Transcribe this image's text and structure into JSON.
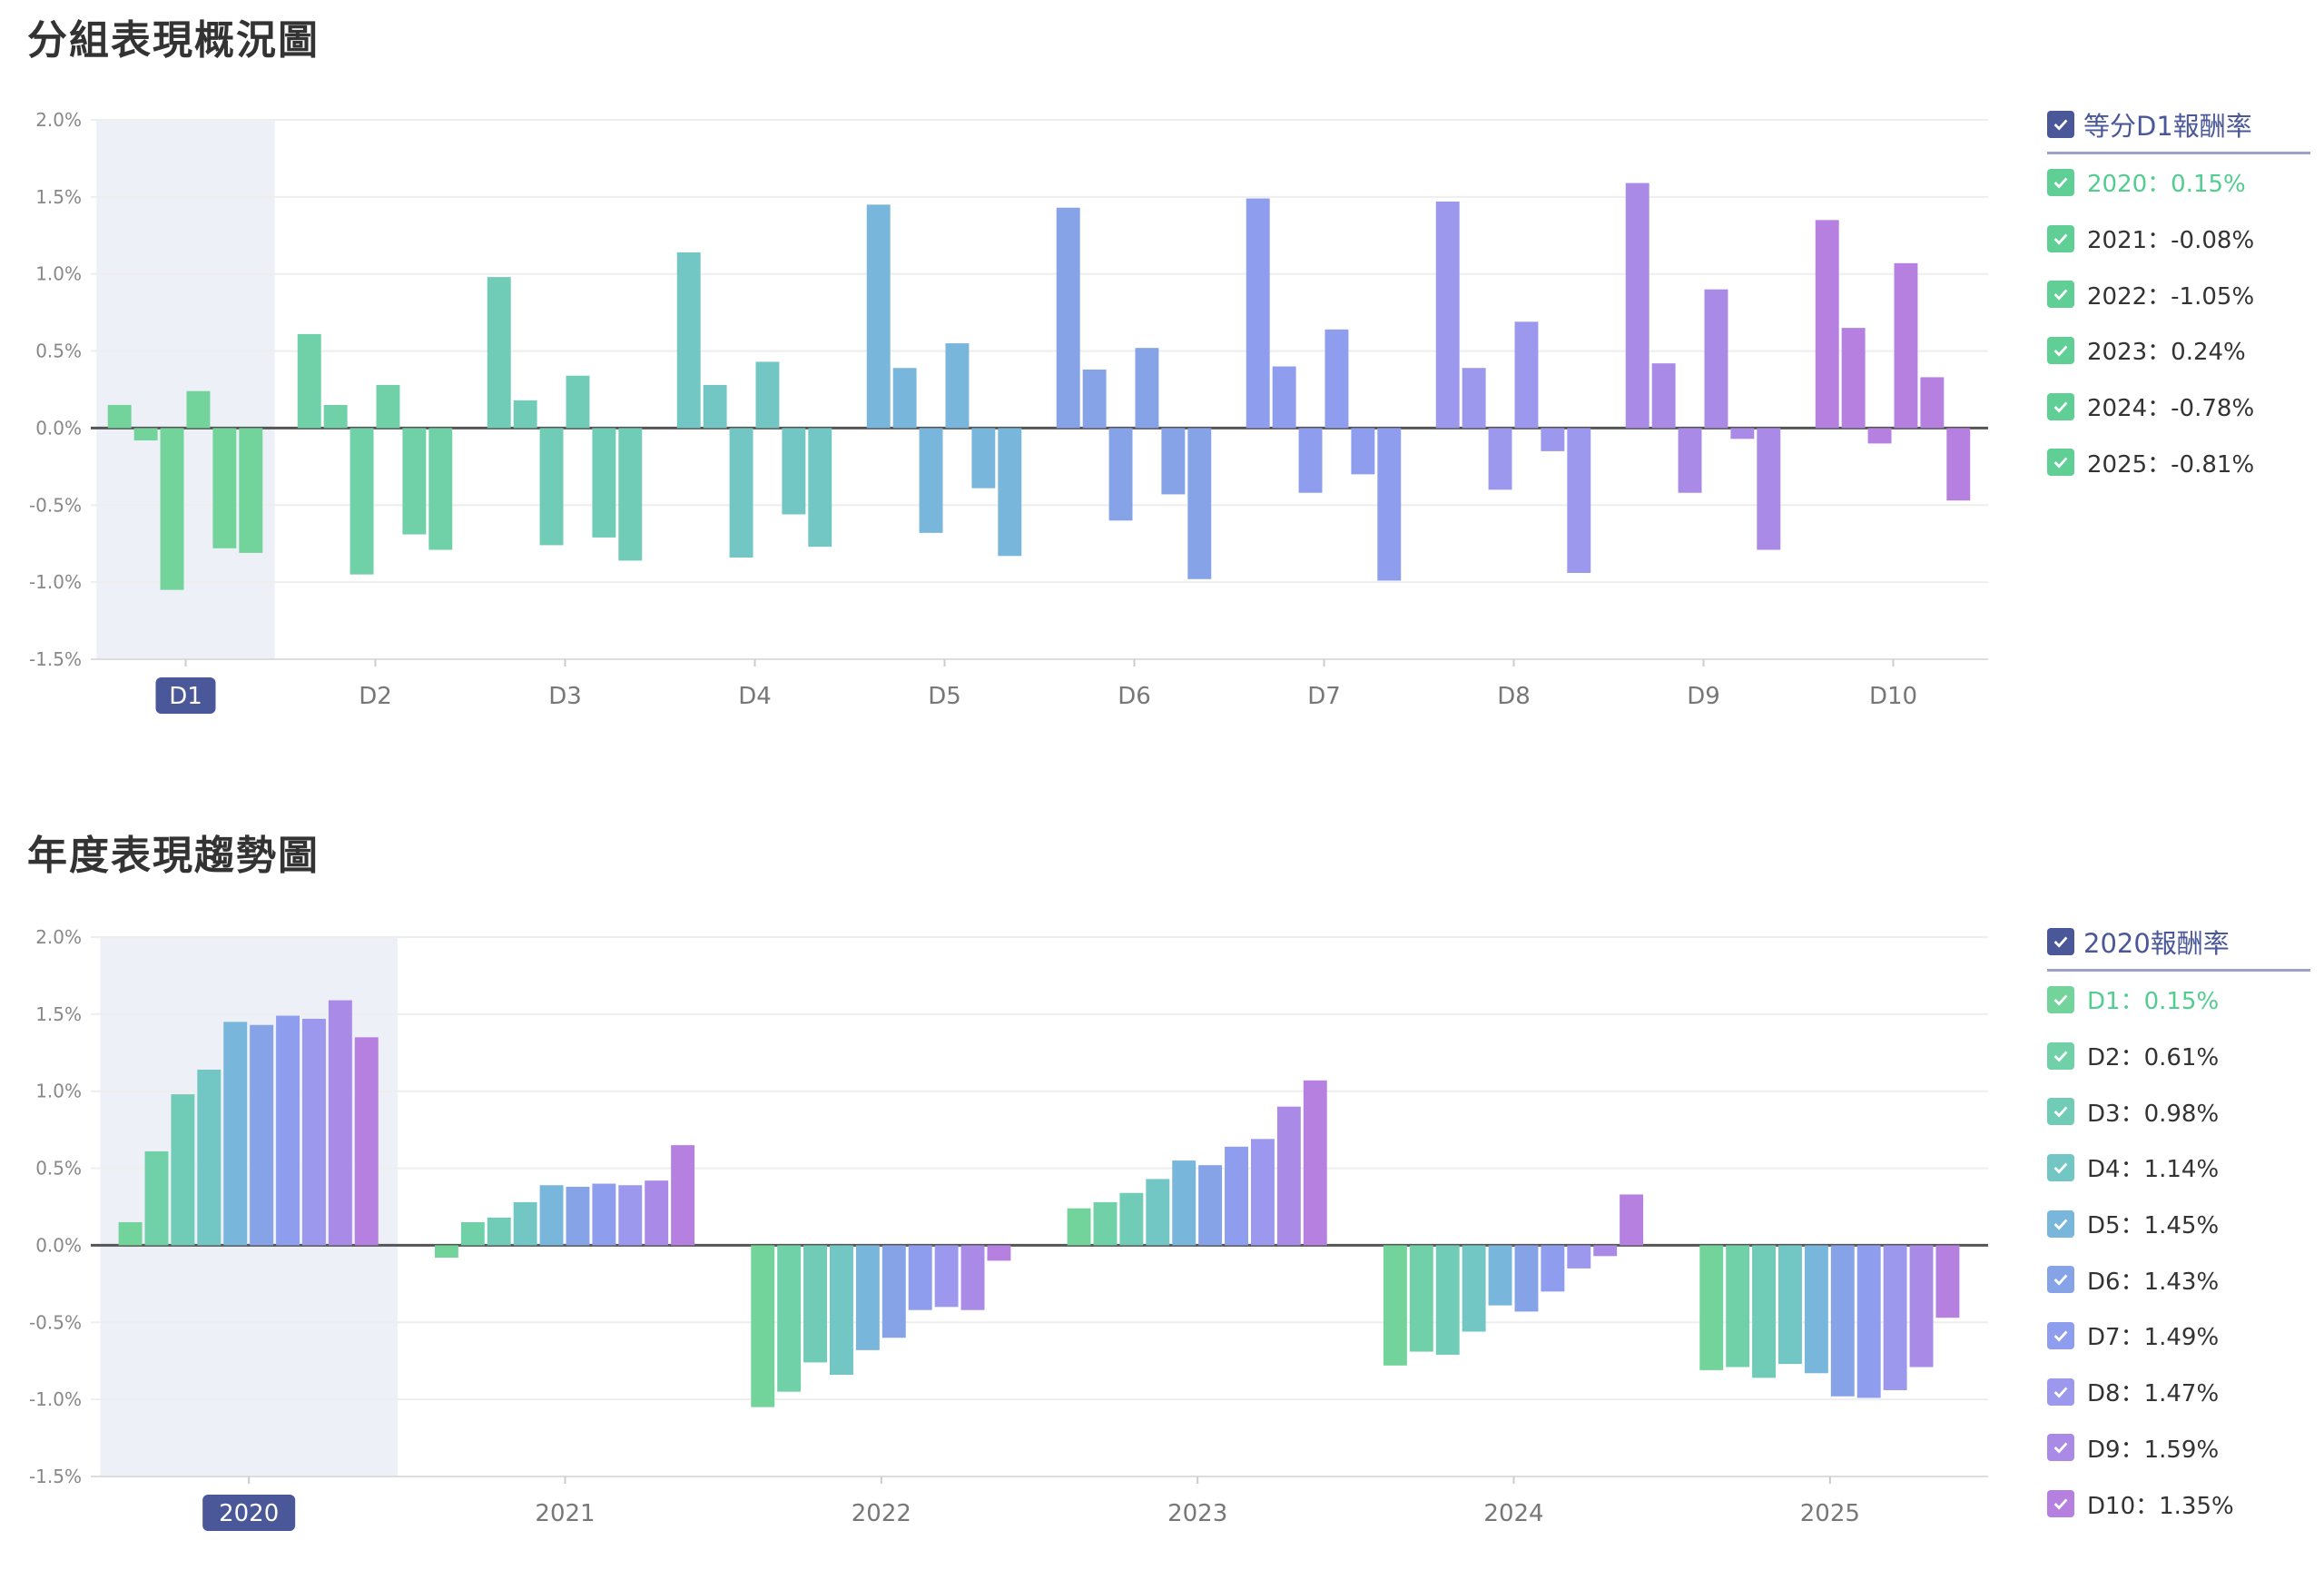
{
  "chart_data": [
    {
      "type": "bar",
      "title": "分組表現概況圖",
      "categories": [
        "D1",
        "D2",
        "D3",
        "D4",
        "D5",
        "D6",
        "D7",
        "D8",
        "D9",
        "D10"
      ],
      "active_category": "D1",
      "ylim": [
        -1.5,
        2.0
      ],
      "yticks": [
        "2.0%",
        "1.5%",
        "1.0%",
        "0.5%",
        "0.0%",
        "-0.5%",
        "-1.0%",
        "-1.5%"
      ],
      "grid": true,
      "legend_position": "right",
      "legend_title": "等分D1報酬率",
      "series": [
        {
          "name": "2020",
          "values": [
            0.15,
            0.61,
            0.98,
            1.14,
            1.45,
            1.43,
            1.49,
            1.47,
            1.59,
            1.35
          ]
        },
        {
          "name": "2021",
          "values": [
            -0.08,
            0.15,
            0.18,
            0.28,
            0.39,
            0.38,
            0.4,
            0.39,
            0.42,
            0.65
          ]
        },
        {
          "name": "2022",
          "values": [
            -1.05,
            -0.95,
            -0.76,
            -0.84,
            -0.68,
            -0.6,
            -0.42,
            -0.4,
            -0.42,
            -0.1
          ]
        },
        {
          "name": "2023",
          "values": [
            0.24,
            0.28,
            0.34,
            0.43,
            0.55,
            0.52,
            0.64,
            0.69,
            0.9,
            1.07
          ]
        },
        {
          "name": "2024",
          "values": [
            -0.78,
            -0.69,
            -0.71,
            -0.56,
            -0.39,
            -0.43,
            -0.3,
            -0.15,
            -0.07,
            0.33
          ]
        },
        {
          "name": "2025",
          "values": [
            -0.81,
            -0.79,
            -0.86,
            -0.77,
            -0.83,
            -0.98,
            -0.99,
            -0.94,
            -0.79,
            -0.47
          ]
        }
      ],
      "legend_items": [
        "2020：0.15%",
        "2021：-0.08%",
        "2022：-1.05%",
        "2023：0.24%",
        "2024：-0.78%",
        "2025：-0.81%"
      ]
    },
    {
      "type": "bar",
      "title": "年度表現趨勢圖",
      "categories": [
        "2020",
        "2021",
        "2022",
        "2023",
        "2024",
        "2025"
      ],
      "active_category": "2020",
      "ylim": [
        -1.5,
        2.0
      ],
      "yticks": [
        "2.0%",
        "1.5%",
        "1.0%",
        "0.5%",
        "0.0%",
        "-0.5%",
        "-1.0%",
        "-1.5%"
      ],
      "grid": true,
      "legend_position": "right",
      "legend_title": "2020報酬率",
      "series": [
        {
          "name": "D1",
          "values": [
            0.15,
            -0.08,
            -1.05,
            0.24,
            -0.78,
            -0.81
          ]
        },
        {
          "name": "D2",
          "values": [
            0.61,
            0.15,
            -0.95,
            0.28,
            -0.69,
            -0.79
          ]
        },
        {
          "name": "D3",
          "values": [
            0.98,
            0.18,
            -0.76,
            0.34,
            -0.71,
            -0.86
          ]
        },
        {
          "name": "D4",
          "values": [
            1.14,
            0.28,
            -0.84,
            0.43,
            -0.56,
            -0.77
          ]
        },
        {
          "name": "D5",
          "values": [
            1.45,
            0.39,
            -0.68,
            0.55,
            -0.39,
            -0.83
          ]
        },
        {
          "name": "D6",
          "values": [
            1.43,
            0.38,
            -0.6,
            0.52,
            -0.43,
            -0.98
          ]
        },
        {
          "name": "D7",
          "values": [
            1.49,
            0.4,
            -0.42,
            0.64,
            -0.3,
            -0.99
          ]
        },
        {
          "name": "D8",
          "values": [
            1.47,
            0.39,
            -0.4,
            0.69,
            -0.15,
            -0.94
          ]
        },
        {
          "name": "D9",
          "values": [
            1.59,
            0.42,
            -0.42,
            0.9,
            -0.07,
            -0.79
          ]
        },
        {
          "name": "D10",
          "values": [
            1.35,
            0.65,
            -0.1,
            1.07,
            0.33,
            -0.47
          ]
        }
      ],
      "legend_items": [
        "D1：0.15%",
        "D2：0.61%",
        "D3：0.98%",
        "D4：1.14%",
        "D5：1.45%",
        "D6：1.43%",
        "D7：1.49%",
        "D8：1.47%",
        "D9：1.59%",
        "D10：1.35%"
      ]
    }
  ],
  "colors": {
    "decile_gradient": [
      "#72d49b",
      "#70d1a8",
      "#70ccb6",
      "#72c6c4",
      "#79b6dc",
      "#86a3e8",
      "#8e9ded",
      "#9b98ee",
      "#a98ae6",
      "#b680e1"
    ],
    "active_label_bg": "#4a5799",
    "highlight_band": "#eef0f7",
    "checkbox_green": "#5fcf96",
    "checkbox_header": "#4a5799",
    "legend_active_text": "#52cc8f"
  }
}
